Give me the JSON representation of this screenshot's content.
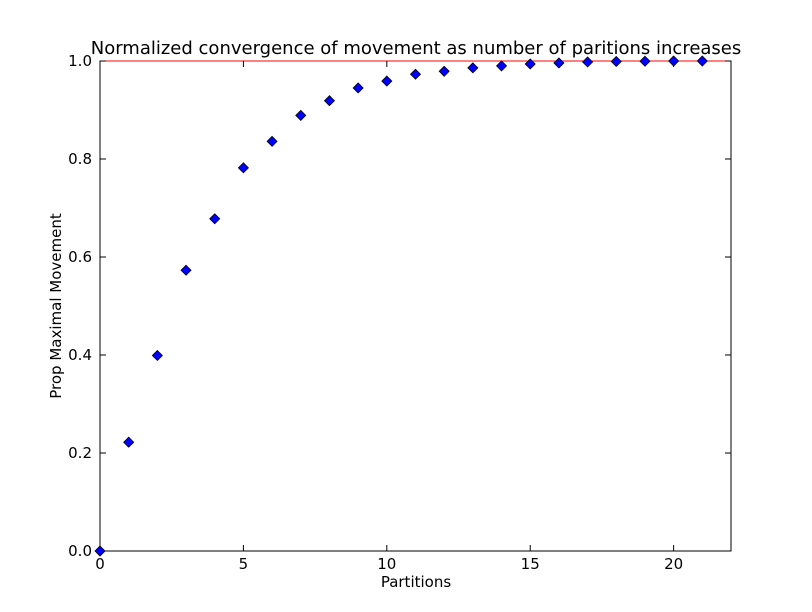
{
  "chart_data": {
    "type": "scatter",
    "title": "Normalized convergence of movement as number of paritions increases",
    "xlabel": "Partitions",
    "ylabel": "Prop Maximal Movement",
    "xlim": [
      0,
      22
    ],
    "ylim": [
      0.0,
      1.0
    ],
    "xticks": [
      0,
      5,
      10,
      15,
      20
    ],
    "xtick_labels": [
      "0",
      "5",
      "10",
      "15",
      "20"
    ],
    "yticks": [
      0.0,
      0.2,
      0.4,
      0.6,
      0.8,
      1.0
    ],
    "ytick_labels": [
      "0.0",
      "0.2",
      "0.4",
      "0.6",
      "0.8",
      "1.0"
    ],
    "grid": false,
    "legend": "none",
    "series": [
      {
        "marker": "diamond",
        "color": "#0000ff",
        "x": [
          0,
          1,
          2,
          3,
          4,
          5,
          6,
          7,
          8,
          9,
          10,
          11,
          12,
          13,
          14,
          15,
          16,
          17,
          18,
          19,
          20,
          21
        ],
        "y": [
          0.0,
          0.222,
          0.399,
          0.573,
          0.678,
          0.782,
          0.836,
          0.889,
          0.919,
          0.945,
          0.959,
          0.973,
          0.979,
          0.986,
          0.99,
          0.994,
          0.996,
          0.998,
          0.999,
          0.9995,
          1.0,
          1.0
        ]
      }
    ],
    "reference_line": {
      "y": 1.0,
      "color": "#ff0000"
    }
  }
}
